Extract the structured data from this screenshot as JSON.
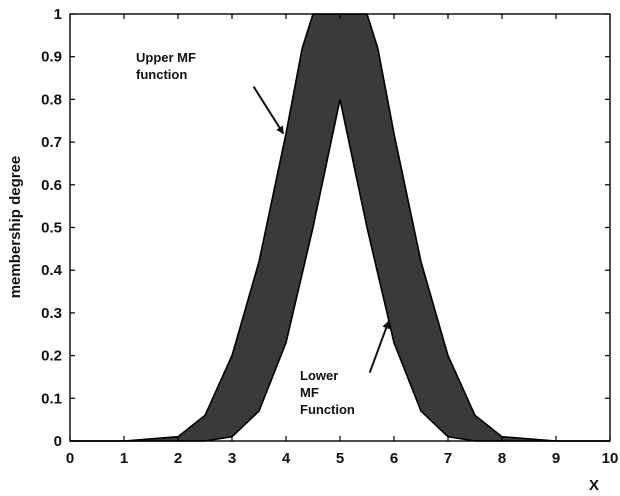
{
  "chart_data": {
    "type": "area",
    "xlabel": "X",
    "ylabel": "membership degree",
    "xlim": [
      0,
      10
    ],
    "ylim": [
      0,
      1
    ],
    "x_ticks": [
      "0",
      "1",
      "2",
      "3",
      "4",
      "5",
      "6",
      "7",
      "8",
      "9",
      "10"
    ],
    "y_ticks": [
      "0",
      "0.1",
      "0.2",
      "0.3",
      "0.4",
      "0.5",
      "0.6",
      "0.7",
      "0.8",
      "0.9",
      "1"
    ],
    "grid": false,
    "fill_color": "#3a3a3a",
    "series": [
      {
        "name": "Upper MF function",
        "x": [
          0,
          1,
          2,
          2.5,
          3,
          3.5,
          4,
          4.3,
          4.5,
          5,
          5.5,
          5.7,
          6,
          6.5,
          7,
          7.5,
          8,
          9,
          10
        ],
        "y": [
          0,
          0,
          0.01,
          0.06,
          0.2,
          0.42,
          0.72,
          0.92,
          1,
          1,
          1,
          0.92,
          0.72,
          0.42,
          0.2,
          0.06,
          0.01,
          0,
          0
        ]
      },
      {
        "name": "Lower MF Function",
        "x": [
          0,
          1,
          2,
          2.5,
          3,
          3.5,
          4,
          4.5,
          5,
          5.5,
          6,
          6.5,
          7,
          7.5,
          8,
          9,
          10
        ],
        "y": [
          0,
          0,
          0,
          0,
          0.01,
          0.07,
          0.23,
          0.5,
          0.8,
          0.5,
          0.23,
          0.07,
          0.01,
          0,
          0,
          0,
          0
        ]
      }
    ],
    "annotations": [
      {
        "lines": [
          "Upper MF",
          "function"
        ],
        "arrow_from": [
          3.4,
          0.83
        ],
        "arrow_to": [
          3.95,
          0.72
        ]
      },
      {
        "lines": [
          "Lower",
          "MF",
          "Function"
        ],
        "arrow_from": [
          5.55,
          0.16
        ],
        "arrow_to": [
          5.9,
          0.28
        ]
      }
    ]
  }
}
